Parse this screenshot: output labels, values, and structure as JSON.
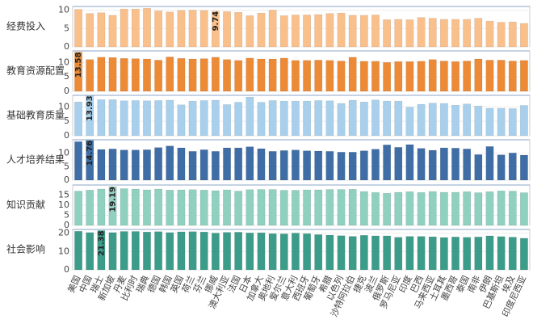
{
  "chart_data": {
    "type": "bar",
    "categories": [
      "美国",
      "中国",
      "瑞士",
      "新加坡",
      "丹麦",
      "比利时",
      "瑞典",
      "德国",
      "韩国",
      "英国",
      "荷兰",
      "芬兰",
      "挪威",
      "澳大利亚",
      "法国",
      "日本",
      "加拿大",
      "奥地利",
      "爱尔兰",
      "意大利",
      "西班牙",
      "葡萄牙",
      "希腊",
      "以色列",
      "沙特阿拉伯",
      "捷克",
      "波兰",
      "俄罗斯",
      "罗马尼亚",
      "印度",
      "巴西",
      "马来西亚",
      "土耳其",
      "墨西哥",
      "泰国",
      "南非",
      "伊朗",
      "巴基斯坦",
      "埃及",
      "印度尼西亚"
    ],
    "series": [
      {
        "name": "经费投入",
        "color": "#f9c08c",
        "ylim": [
          0,
          11
        ],
        "yticks": [
          0,
          5,
          10
        ],
        "values": [
          10.2,
          9.1,
          9.3,
          8.6,
          10.3,
          10.3,
          10.5,
          9.8,
          9.5,
          9.9,
          10,
          9.9,
          9.74,
          9.6,
          9.4,
          8.5,
          9.2,
          10,
          8.5,
          8.7,
          8.7,
          8.8,
          9.1,
          9.2,
          8.6,
          8.6,
          8.7,
          7.4,
          7.5,
          7.4,
          8,
          7.8,
          7.5,
          7.5,
          7.5,
          7.8,
          7,
          6.7,
          6.8,
          6.4
        ],
        "value_labels": [
          null,
          null,
          null,
          null,
          null,
          null,
          null,
          null,
          null,
          null,
          null,
          null,
          "9.74",
          null,
          null,
          null,
          null,
          null,
          null,
          null,
          null,
          null,
          null,
          null,
          null,
          null,
          null,
          null,
          null,
          null,
          null,
          null,
          null,
          null,
          null,
          null,
          null,
          null,
          null,
          null
        ]
      },
      {
        "name": "教育资源配置",
        "color": "#ec8a36",
        "ylim": [
          0,
          14
        ],
        "yticks": [
          0,
          5,
          10
        ],
        "values": [
          13.58,
          11,
          11.8,
          11.7,
          11.4,
          11.3,
          11.2,
          10.8,
          11.9,
          11.4,
          11.2,
          11.3,
          11.8,
          11,
          10.7,
          11.5,
          11.2,
          11.2,
          11.5,
          10.7,
          10.7,
          10.8,
          10.7,
          10.5,
          11.8,
          10.4,
          10.4,
          10,
          10.3,
          10.3,
          10.4,
          11,
          10.5,
          10.3,
          10.5,
          11.2,
          10.8,
          10.8,
          10.5,
          10.7
        ],
        "value_labels": [
          "13.58",
          null,
          null,
          null,
          null,
          null,
          null,
          null,
          null,
          null,
          null,
          null,
          null,
          null,
          null,
          null,
          null,
          null,
          null,
          null,
          null,
          null,
          null,
          null,
          null,
          null,
          null,
          null,
          null,
          null,
          null,
          null,
          null,
          null,
          null,
          null,
          null,
          null,
          null,
          null
        ]
      },
      {
        "name": "基础教育质量",
        "color": "#a8d0ec",
        "ylim": [
          0,
          14
        ],
        "yticks": [
          0,
          5,
          10
        ],
        "values": [
          11.7,
          13.93,
          12.5,
          12.5,
          12.1,
          12.2,
          12.1,
          12.2,
          12.3,
          10.7,
          12,
          12.2,
          12.3,
          10.8,
          11.6,
          13.4,
          11.6,
          12.2,
          12,
          12,
          12,
          12.2,
          12.1,
          11.2,
          12.3,
          11.7,
          12.4,
          12,
          12,
          9.9,
          10.9,
          11.3,
          11.2,
          10.6,
          11,
          10.3,
          9.5,
          9.5,
          9.4,
          10.5
        ],
        "value_labels": [
          null,
          "13.93",
          null,
          null,
          null,
          null,
          null,
          null,
          null,
          null,
          null,
          null,
          null,
          null,
          null,
          null,
          null,
          null,
          null,
          null,
          null,
          null,
          null,
          null,
          null,
          null,
          null,
          null,
          null,
          null,
          null,
          null,
          null,
          null,
          null,
          null,
          null,
          null,
          null,
          null
        ]
      },
      {
        "name": "人才培养结果",
        "color": "#3f6ea6",
        "ylim": [
          0,
          15
        ],
        "yticks": [
          0,
          5,
          10
        ],
        "values": [
          14.3,
          14.76,
          11.4,
          11.6,
          11.2,
          11.2,
          11.3,
          12.1,
          12.7,
          12,
          10.7,
          11.3,
          10.7,
          12,
          12,
          12.4,
          11.7,
          10.7,
          11,
          11.2,
          10.9,
          10.8,
          10.7,
          10.4,
          10.4,
          10.9,
          11.5,
          13.1,
          12.2,
          13.2,
          11.8,
          11.1,
          12,
          11.9,
          11.6,
          9.5,
          12.5,
          9.4,
          10.1,
          9.3
        ],
        "value_labels": [
          null,
          "14.76",
          null,
          null,
          null,
          null,
          null,
          null,
          null,
          null,
          null,
          null,
          null,
          null,
          null,
          null,
          null,
          null,
          null,
          null,
          null,
          null,
          null,
          null,
          null,
          null,
          null,
          null,
          null,
          null,
          null,
          null,
          null,
          null,
          null,
          null,
          null,
          null,
          null,
          null
        ]
      },
      {
        "name": "知识贡献",
        "color": "#8fd0bf",
        "ylim": [
          0,
          20
        ],
        "yticks": [
          0,
          5,
          10,
          15
        ],
        "values": [
          17,
          17.5,
          18,
          19.19,
          18.2,
          18,
          17.6,
          18,
          17.5,
          17.6,
          17.7,
          17.5,
          17.2,
          17.6,
          17,
          17.7,
          17.8,
          17.8,
          17.4,
          17.4,
          17.6,
          17.6,
          17.8,
          17.8,
          17.9,
          16.8,
          16.3,
          15.9,
          16.4,
          16.7,
          16.3,
          16.8,
          16.4,
          16.4,
          16.7,
          16.2,
          16.7,
          17.1,
          17,
          16.2
        ],
        "value_labels": [
          null,
          null,
          null,
          "19.19",
          null,
          null,
          null,
          null,
          null,
          null,
          null,
          null,
          null,
          null,
          null,
          null,
          null,
          null,
          null,
          null,
          null,
          null,
          null,
          null,
          null,
          null,
          null,
          null,
          null,
          null,
          null,
          null,
          null,
          null,
          null,
          null,
          null,
          null,
          null,
          null
        ]
      },
      {
        "name": "社会影响",
        "color": "#3c9c8a",
        "ylim": [
          0,
          22
        ],
        "yticks": [
          0,
          10,
          20
        ],
        "values": [
          21,
          20.3,
          21.38,
          20.3,
          20.9,
          20.9,
          20.6,
          20.8,
          20.3,
          20.7,
          20.8,
          20.6,
          20,
          20.4,
          20.5,
          20.1,
          20.2,
          19.7,
          19.6,
          20,
          19.7,
          19.2,
          18.9,
          18.6,
          18.2,
          18.8,
          18.5,
          18.5,
          17.7,
          18.2,
          18.2,
          18,
          17.6,
          17.9,
          17.7,
          17.9,
          18.5,
          18.1,
          17.8,
          17.2
        ],
        "value_labels": [
          null,
          null,
          "21.38",
          null,
          null,
          null,
          null,
          null,
          null,
          null,
          null,
          null,
          null,
          null,
          null,
          null,
          null,
          null,
          null,
          null,
          null,
          null,
          null,
          null,
          null,
          null,
          null,
          null,
          null,
          null,
          null,
          null,
          null,
          null,
          null,
          null,
          null,
          null,
          null,
          null
        ]
      }
    ]
  }
}
